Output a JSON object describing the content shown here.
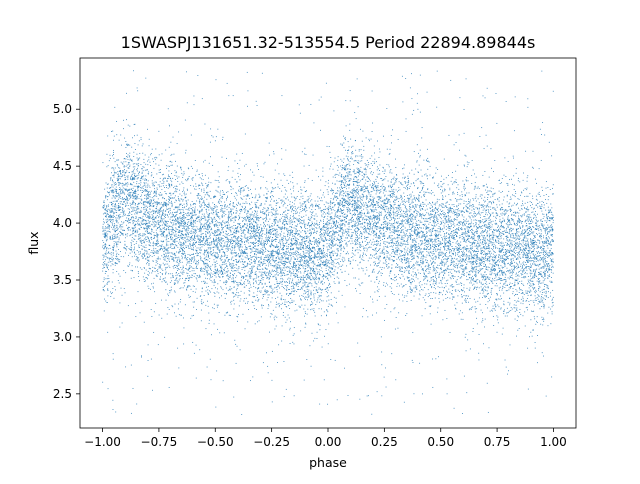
{
  "chart_data": {
    "type": "scatter",
    "title": "1SWASPJ131651.32-513554.5 Period 22894.89844s",
    "xlabel": "phase",
    "ylabel": "flux",
    "xlim": [
      -1.1,
      1.1
    ],
    "ylim": [
      2.2,
      5.45
    ],
    "x_ticks": [
      -1.0,
      -0.75,
      -0.5,
      -0.25,
      0.0,
      0.25,
      0.5,
      0.75,
      1.0
    ],
    "x_tick_labels": [
      "−1.00",
      "−0.75",
      "−0.50",
      "−0.25",
      "0.00",
      "0.25",
      "0.50",
      "0.75",
      "1.00"
    ],
    "y_ticks": [
      2.5,
      3.0,
      3.5,
      4.0,
      4.5,
      5.0
    ],
    "y_tick_labels": [
      "2.5",
      "3.0",
      "3.5",
      "4.0",
      "4.5",
      "5.0"
    ],
    "grid": false,
    "legend": "none",
    "marker_color": "#1f77b4",
    "phase_range": [
      -1.0,
      1.0
    ],
    "mean_flux_profile": {
      "phase": [
        0.0,
        0.05,
        0.08,
        0.12,
        0.18,
        0.25,
        0.35,
        0.45,
        0.55,
        0.65,
        0.75,
        0.85,
        0.95,
        1.0
      ],
      "flux": [
        3.78,
        4.05,
        4.15,
        4.18,
        4.08,
        3.98,
        3.92,
        3.87,
        3.84,
        3.81,
        3.78,
        3.76,
        3.72,
        3.78
      ]
    },
    "scatter_sigma": 0.28,
    "outlier_range": [
      2.3,
      5.35
    ]
  }
}
